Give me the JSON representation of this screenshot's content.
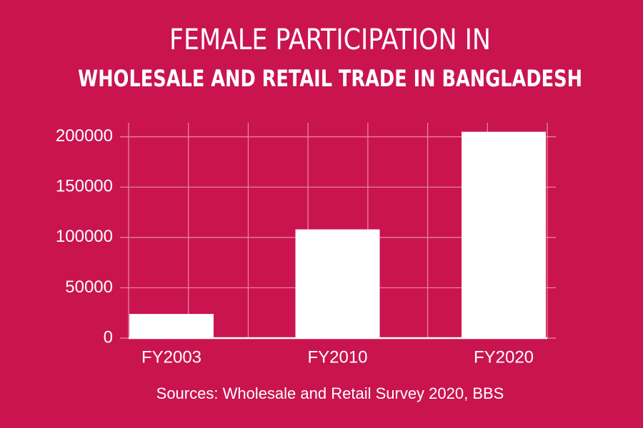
{
  "chart_data": {
    "type": "bar",
    "title": "FEMALE PARTICIPATION IN",
    "subtitle": "WHOLESALE AND RETAIL TRADE IN BANGLADESH",
    "source": "Sources: Wholesale and Retail Survey 2020, BBS",
    "categories": [
      "FY2003",
      "FY2010",
      "FY2020"
    ],
    "values": [
      24000,
      108000,
      205000
    ],
    "color": "#ffffff",
    "ylim": [
      0,
      214000
    ],
    "yticks": [
      0,
      50000,
      100000,
      150000,
      200000
    ],
    "grid": true
  }
}
